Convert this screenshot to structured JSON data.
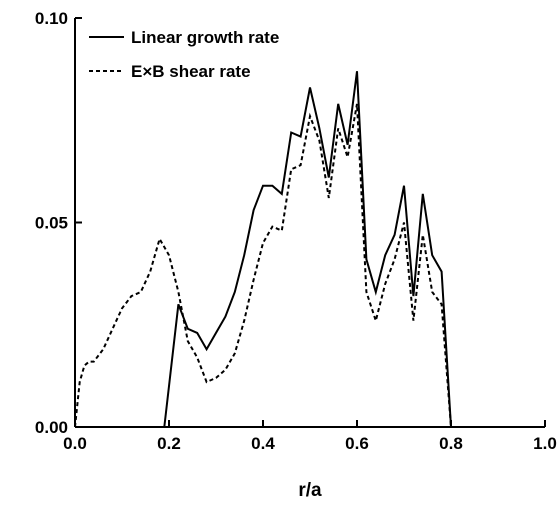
{
  "chart_data": {
    "type": "line",
    "title": "",
    "xlabel": "r/a",
    "ylabel": "",
    "xlim": [
      0.0,
      1.0
    ],
    "ylim": [
      0.0,
      0.1
    ],
    "x_ticks": [
      "0.0",
      "0.2",
      "0.4",
      "0.6",
      "0.8",
      "1.0"
    ],
    "y_ticks": [
      "0.00",
      "0.05",
      "0.10"
    ],
    "grid": false,
    "legend_position": "top-left",
    "series": [
      {
        "name": "Linear growth rate",
        "style": "solid",
        "color": "#000000",
        "points": [
          [
            0.19,
            0.0
          ],
          [
            0.22,
            0.03
          ],
          [
            0.24,
            0.024
          ],
          [
            0.26,
            0.023
          ],
          [
            0.28,
            0.019
          ],
          [
            0.3,
            0.023
          ],
          [
            0.32,
            0.027
          ],
          [
            0.34,
            0.033
          ],
          [
            0.36,
            0.042
          ],
          [
            0.38,
            0.053
          ],
          [
            0.4,
            0.059
          ],
          [
            0.42,
            0.059
          ],
          [
            0.44,
            0.057
          ],
          [
            0.46,
            0.072
          ],
          [
            0.48,
            0.071
          ],
          [
            0.5,
            0.083
          ],
          [
            0.52,
            0.073
          ],
          [
            0.54,
            0.061
          ],
          [
            0.56,
            0.079
          ],
          [
            0.58,
            0.069
          ],
          [
            0.6,
            0.087
          ],
          [
            0.62,
            0.041
          ],
          [
            0.64,
            0.033
          ],
          [
            0.66,
            0.042
          ],
          [
            0.68,
            0.047
          ],
          [
            0.7,
            0.059
          ],
          [
            0.72,
            0.032
          ],
          [
            0.74,
            0.057
          ],
          [
            0.76,
            0.042
          ],
          [
            0.78,
            0.038
          ],
          [
            0.8,
            0.0
          ]
        ]
      },
      {
        "name": "E×B shear rate",
        "style": "dashed",
        "color": "#000000",
        "points": [
          [
            0.0,
            0.0
          ],
          [
            0.01,
            0.011
          ],
          [
            0.02,
            0.015
          ],
          [
            0.03,
            0.016
          ],
          [
            0.04,
            0.016
          ],
          [
            0.06,
            0.019
          ],
          [
            0.08,
            0.024
          ],
          [
            0.1,
            0.029
          ],
          [
            0.12,
            0.032
          ],
          [
            0.14,
            0.033
          ],
          [
            0.16,
            0.038
          ],
          [
            0.18,
            0.046
          ],
          [
            0.2,
            0.042
          ],
          [
            0.22,
            0.033
          ],
          [
            0.24,
            0.021
          ],
          [
            0.26,
            0.017
          ],
          [
            0.28,
            0.011
          ],
          [
            0.3,
            0.012
          ],
          [
            0.32,
            0.014
          ],
          [
            0.34,
            0.018
          ],
          [
            0.36,
            0.026
          ],
          [
            0.38,
            0.036
          ],
          [
            0.4,
            0.045
          ],
          [
            0.42,
            0.049
          ],
          [
            0.44,
            0.048
          ],
          [
            0.46,
            0.063
          ],
          [
            0.48,
            0.064
          ],
          [
            0.5,
            0.076
          ],
          [
            0.52,
            0.07
          ],
          [
            0.54,
            0.056
          ],
          [
            0.56,
            0.073
          ],
          [
            0.58,
            0.066
          ],
          [
            0.6,
            0.079
          ],
          [
            0.62,
            0.033
          ],
          [
            0.64,
            0.026
          ],
          [
            0.66,
            0.035
          ],
          [
            0.68,
            0.041
          ],
          [
            0.7,
            0.05
          ],
          [
            0.72,
            0.026
          ],
          [
            0.74,
            0.047
          ],
          [
            0.76,
            0.033
          ],
          [
            0.78,
            0.03
          ],
          [
            0.8,
            0.0
          ]
        ]
      }
    ]
  }
}
